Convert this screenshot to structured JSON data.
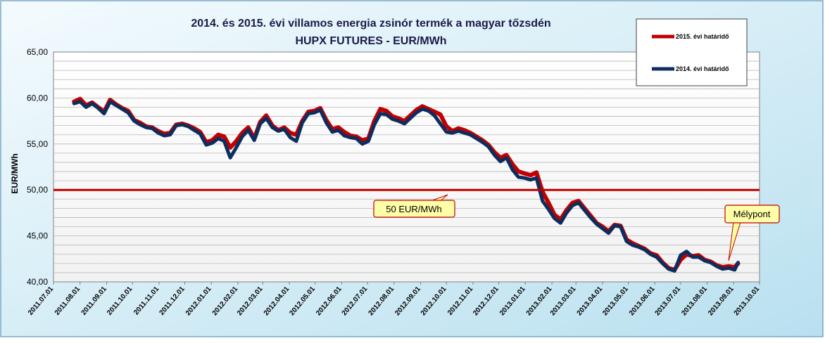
{
  "chart_data": {
    "type": "line",
    "title": "2014. és 2015. évi villamos energia zsinór termék a magyar tőzsdén",
    "subtitle": "HUPX FUTURES - EUR/MWh",
    "xlabel": "",
    "ylabel": "EUR/MWh",
    "ylim": [
      40,
      65
    ],
    "y_ticks": [
      "40,00",
      "45,00",
      "50,00",
      "55,00",
      "60,00",
      "65,00"
    ],
    "x_ticks": [
      "2011.07.01",
      "2011.08.01",
      "2011.09.01",
      "2011.10.01",
      "2011.11.01",
      "2011.12.01",
      "2012.01.01",
      "2012.02.01",
      "2012.03.01",
      "2012.04.01",
      "2012.05.01",
      "2012.06.01",
      "2012.07.01",
      "2012.08.01",
      "2012.09.01",
      "2012.10.01",
      "2012.11.01",
      "2012.12.01",
      "2013.01.01",
      "2013.02.01",
      "2013.03.01",
      "2013.04.01",
      "2013.05.01",
      "2013.06.01",
      "2013.07.01",
      "2013.08.01",
      "2013.09.01",
      "2013.10.01"
    ],
    "grid": true,
    "legend_position": "top-right",
    "reference_line": {
      "value": 50,
      "label": "50 EUR/MWh",
      "color": "#c00000"
    },
    "annotation": {
      "label": "Mélypont",
      "date": "2013-08-28",
      "value": 41.5
    },
    "series": [
      {
        "name": "2015. évi határidő",
        "color": "#c00000",
        "points": [
          [
            "2011-07-25",
            59.6
          ],
          [
            "2011-08-01",
            59.9
          ],
          [
            "2011-08-08",
            59.2
          ],
          [
            "2011-08-15",
            59.5
          ],
          [
            "2011-08-22",
            59.0
          ],
          [
            "2011-08-29",
            58.5
          ],
          [
            "2011-09-05",
            59.8
          ],
          [
            "2011-09-12",
            59.3
          ],
          [
            "2011-09-19",
            58.9
          ],
          [
            "2011-09-26",
            58.6
          ],
          [
            "2011-10-03",
            57.6
          ],
          [
            "2011-10-10",
            57.3
          ],
          [
            "2011-10-17",
            56.9
          ],
          [
            "2011-10-24",
            56.8
          ],
          [
            "2011-10-31",
            56.4
          ],
          [
            "2011-11-07",
            56.1
          ],
          [
            "2011-11-14",
            56.2
          ],
          [
            "2011-11-21",
            57.1
          ],
          [
            "2011-11-28",
            57.2
          ],
          [
            "2011-12-05",
            57.0
          ],
          [
            "2011-12-12",
            56.7
          ],
          [
            "2011-12-19",
            56.3
          ],
          [
            "2011-12-26",
            55.2
          ],
          [
            "2012-01-02",
            55.4
          ],
          [
            "2012-01-09",
            56.0
          ],
          [
            "2012-01-16",
            55.8
          ],
          [
            "2012-01-23",
            54.6
          ],
          [
            "2012-01-30",
            55.3
          ],
          [
            "2012-02-06",
            56.2
          ],
          [
            "2012-02-13",
            56.8
          ],
          [
            "2012-02-20",
            55.6
          ],
          [
            "2012-02-27",
            57.4
          ],
          [
            "2012-03-05",
            58.1
          ],
          [
            "2012-03-12",
            57.0
          ],
          [
            "2012-03-19",
            56.5
          ],
          [
            "2012-03-26",
            56.8
          ],
          [
            "2012-04-02",
            56.2
          ],
          [
            "2012-04-09",
            56.0
          ],
          [
            "2012-04-16",
            57.5
          ],
          [
            "2012-04-23",
            58.5
          ],
          [
            "2012-04-30",
            58.6
          ],
          [
            "2012-05-07",
            58.9
          ],
          [
            "2012-05-14",
            57.6
          ],
          [
            "2012-05-21",
            56.6
          ],
          [
            "2012-05-28",
            56.8
          ],
          [
            "2012-06-04",
            56.3
          ],
          [
            "2012-06-11",
            55.9
          ],
          [
            "2012-06-18",
            55.8
          ],
          [
            "2012-06-25",
            55.4
          ],
          [
            "2012-07-02",
            55.6
          ],
          [
            "2012-07-09",
            57.5
          ],
          [
            "2012-07-16",
            58.8
          ],
          [
            "2012-07-23",
            58.6
          ],
          [
            "2012-07-30",
            58.0
          ],
          [
            "2012-08-06",
            57.8
          ],
          [
            "2012-08-13",
            57.5
          ],
          [
            "2012-08-20",
            58.1
          ],
          [
            "2012-08-27",
            58.7
          ],
          [
            "2012-09-03",
            59.1
          ],
          [
            "2012-09-10",
            58.8
          ],
          [
            "2012-09-17",
            58.5
          ],
          [
            "2012-09-24",
            58.2
          ],
          [
            "2012-10-01",
            56.9
          ],
          [
            "2012-10-08",
            56.4
          ],
          [
            "2012-10-15",
            56.7
          ],
          [
            "2012-10-22",
            56.5
          ],
          [
            "2012-10-29",
            56.2
          ],
          [
            "2012-11-05",
            55.8
          ],
          [
            "2012-11-12",
            55.4
          ],
          [
            "2012-11-19",
            54.9
          ],
          [
            "2012-11-26",
            54.1
          ],
          [
            "2012-12-03",
            53.5
          ],
          [
            "2012-12-10",
            53.8
          ],
          [
            "2012-12-17",
            52.8
          ],
          [
            "2012-12-24",
            52.0
          ],
          [
            "2012-12-31",
            51.8
          ],
          [
            "2013-01-07",
            51.6
          ],
          [
            "2013-01-14",
            51.9
          ],
          [
            "2013-01-21",
            49.8
          ],
          [
            "2013-01-28",
            48.6
          ],
          [
            "2013-02-04",
            47.3
          ],
          [
            "2013-02-11",
            46.8
          ],
          [
            "2013-02-18",
            47.8
          ],
          [
            "2013-02-25",
            48.6
          ],
          [
            "2013-03-04",
            48.8
          ],
          [
            "2013-03-11",
            48.0
          ],
          [
            "2013-03-18",
            47.2
          ],
          [
            "2013-03-25",
            46.4
          ],
          [
            "2013-04-01",
            46.0
          ],
          [
            "2013-04-08",
            45.5
          ],
          [
            "2013-04-15",
            46.2
          ],
          [
            "2013-04-22",
            46.1
          ],
          [
            "2013-04-29",
            44.6
          ],
          [
            "2013-05-06",
            44.2
          ],
          [
            "2013-05-13",
            43.9
          ],
          [
            "2013-05-20",
            43.6
          ],
          [
            "2013-05-27",
            43.1
          ],
          [
            "2013-06-03",
            42.9
          ],
          [
            "2013-06-10",
            42.1
          ],
          [
            "2013-06-17",
            41.5
          ],
          [
            "2013-06-24",
            41.3
          ],
          [
            "2013-07-01",
            42.4
          ],
          [
            "2013-07-08",
            43.0
          ],
          [
            "2013-07-15",
            42.8
          ],
          [
            "2013-07-22",
            42.9
          ],
          [
            "2013-07-29",
            42.4
          ],
          [
            "2013-08-05",
            42.2
          ],
          [
            "2013-08-12",
            41.8
          ],
          [
            "2013-08-19",
            41.6
          ],
          [
            "2013-08-26",
            41.7
          ],
          [
            "2013-09-02",
            41.6
          ],
          [
            "2013-09-06",
            42.0
          ]
        ]
      },
      {
        "name": "2014. évi határidő",
        "color": "#0d2d5e",
        "points": [
          [
            "2011-07-25",
            59.4
          ],
          [
            "2011-08-01",
            59.6
          ],
          [
            "2011-08-08",
            59.0
          ],
          [
            "2011-08-15",
            59.4
          ],
          [
            "2011-08-22",
            58.9
          ],
          [
            "2011-08-29",
            58.3
          ],
          [
            "2011-09-05",
            59.6
          ],
          [
            "2011-09-12",
            59.2
          ],
          [
            "2011-09-19",
            58.8
          ],
          [
            "2011-09-26",
            58.4
          ],
          [
            "2011-10-03",
            57.5
          ],
          [
            "2011-10-10",
            57.1
          ],
          [
            "2011-10-17",
            56.8
          ],
          [
            "2011-10-24",
            56.7
          ],
          [
            "2011-10-31",
            56.2
          ],
          [
            "2011-11-07",
            55.9
          ],
          [
            "2011-11-14",
            56.0
          ],
          [
            "2011-11-21",
            57.0
          ],
          [
            "2011-11-28",
            57.1
          ],
          [
            "2011-12-05",
            56.9
          ],
          [
            "2011-12-12",
            56.5
          ],
          [
            "2011-12-19",
            56.1
          ],
          [
            "2011-12-26",
            54.9
          ],
          [
            "2012-01-02",
            55.1
          ],
          [
            "2012-01-09",
            55.6
          ],
          [
            "2012-01-16",
            55.3
          ],
          [
            "2012-01-23",
            53.5
          ],
          [
            "2012-01-30",
            54.6
          ],
          [
            "2012-02-06",
            55.8
          ],
          [
            "2012-02-13",
            56.5
          ],
          [
            "2012-02-20",
            55.4
          ],
          [
            "2012-02-27",
            57.2
          ],
          [
            "2012-03-05",
            57.8
          ],
          [
            "2012-03-12",
            56.8
          ],
          [
            "2012-03-19",
            56.4
          ],
          [
            "2012-03-26",
            56.6
          ],
          [
            "2012-04-02",
            55.7
          ],
          [
            "2012-04-09",
            55.3
          ],
          [
            "2012-04-16",
            57.3
          ],
          [
            "2012-04-23",
            58.3
          ],
          [
            "2012-04-30",
            58.4
          ],
          [
            "2012-05-07",
            58.7
          ],
          [
            "2012-05-14",
            57.3
          ],
          [
            "2012-05-21",
            56.3
          ],
          [
            "2012-05-28",
            56.5
          ],
          [
            "2012-06-04",
            55.9
          ],
          [
            "2012-06-11",
            55.7
          ],
          [
            "2012-06-18",
            55.6
          ],
          [
            "2012-06-25",
            55.0
          ],
          [
            "2012-07-02",
            55.3
          ],
          [
            "2012-07-09",
            57.1
          ],
          [
            "2012-07-16",
            58.3
          ],
          [
            "2012-07-23",
            58.2
          ],
          [
            "2012-07-30",
            57.7
          ],
          [
            "2012-08-06",
            57.5
          ],
          [
            "2012-08-13",
            57.2
          ],
          [
            "2012-08-20",
            57.8
          ],
          [
            "2012-08-27",
            58.4
          ],
          [
            "2012-09-03",
            58.8
          ],
          [
            "2012-09-10",
            58.6
          ],
          [
            "2012-09-17",
            58.1
          ],
          [
            "2012-09-24",
            57.2
          ],
          [
            "2012-10-01",
            56.3
          ],
          [
            "2012-10-08",
            56.2
          ],
          [
            "2012-10-15",
            56.4
          ],
          [
            "2012-10-22",
            56.2
          ],
          [
            "2012-10-29",
            56.0
          ],
          [
            "2012-11-05",
            55.6
          ],
          [
            "2012-11-12",
            55.2
          ],
          [
            "2012-11-19",
            54.7
          ],
          [
            "2012-11-26",
            53.8
          ],
          [
            "2012-12-03",
            53.1
          ],
          [
            "2012-12-10",
            53.5
          ],
          [
            "2012-12-17",
            52.2
          ],
          [
            "2012-12-24",
            51.4
          ],
          [
            "2012-12-31",
            51.3
          ],
          [
            "2013-01-07",
            51.1
          ],
          [
            "2013-01-14",
            51.3
          ],
          [
            "2013-01-21",
            48.8
          ],
          [
            "2013-01-28",
            47.9
          ],
          [
            "2013-02-04",
            46.9
          ],
          [
            "2013-02-11",
            46.4
          ],
          [
            "2013-02-18",
            47.5
          ],
          [
            "2013-02-25",
            48.3
          ],
          [
            "2013-03-04",
            48.6
          ],
          [
            "2013-03-11",
            47.8
          ],
          [
            "2013-03-18",
            47.0
          ],
          [
            "2013-03-25",
            46.3
          ],
          [
            "2013-04-01",
            45.8
          ],
          [
            "2013-04-08",
            45.3
          ],
          [
            "2013-04-15",
            46.1
          ],
          [
            "2013-04-22",
            46.0
          ],
          [
            "2013-04-29",
            44.4
          ],
          [
            "2013-05-06",
            44.0
          ],
          [
            "2013-05-13",
            43.8
          ],
          [
            "2013-05-20",
            43.5
          ],
          [
            "2013-05-27",
            43.0
          ],
          [
            "2013-06-03",
            42.7
          ],
          [
            "2013-06-10",
            42.0
          ],
          [
            "2013-06-17",
            41.4
          ],
          [
            "2013-06-24",
            41.2
          ],
          [
            "2013-07-01",
            42.9
          ],
          [
            "2013-07-08",
            43.3
          ],
          [
            "2013-07-15",
            42.7
          ],
          [
            "2013-07-22",
            42.7
          ],
          [
            "2013-07-29",
            42.3
          ],
          [
            "2013-08-05",
            42.1
          ],
          [
            "2013-08-12",
            41.7
          ],
          [
            "2013-08-19",
            41.4
          ],
          [
            "2013-08-26",
            41.5
          ],
          [
            "2013-09-02",
            41.3
          ],
          [
            "2013-09-06",
            42.1
          ]
        ]
      }
    ]
  }
}
